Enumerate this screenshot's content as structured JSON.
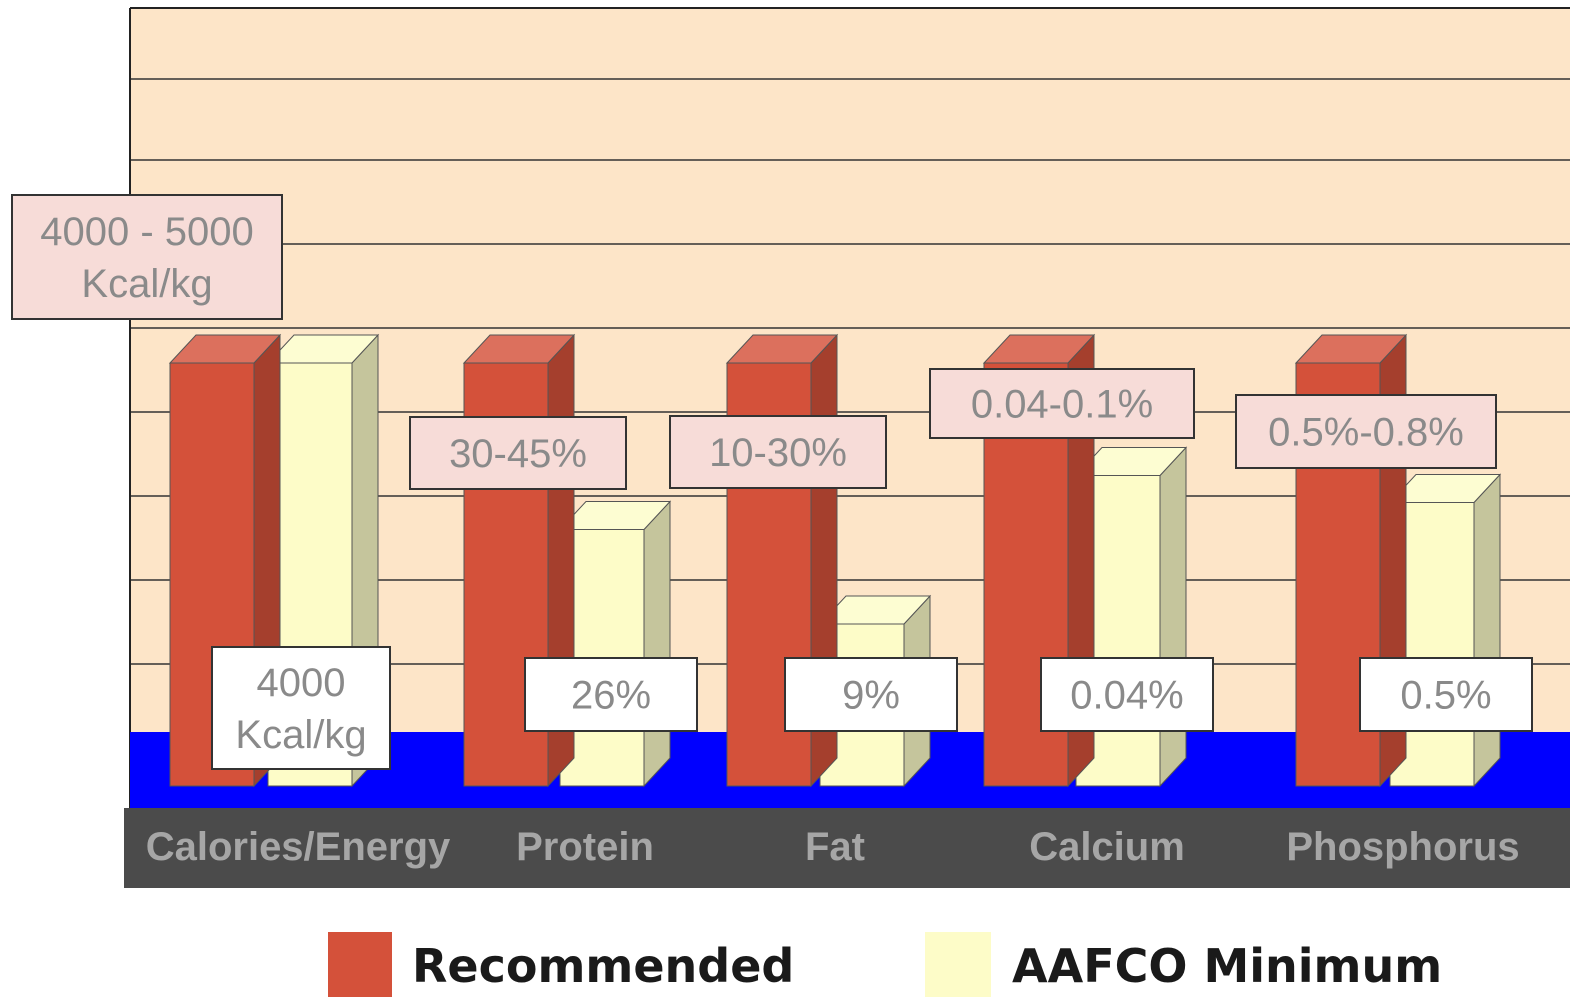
{
  "chart_data": {
    "type": "bar",
    "categories": [
      "Calories/Energy",
      "Protein",
      "Fat",
      "Calcium",
      "Phosphorus"
    ],
    "series": [
      {
        "name": "Recommended",
        "labels": [
          [
            "4000 - 5000",
            "Kcal/kg"
          ],
          [
            "30-45%"
          ],
          [
            "10-30%"
          ],
          [
            "0.04-0.1%"
          ],
          [
            "0.5%-0.8%"
          ]
        ]
      },
      {
        "name": "AAFCO Minimum",
        "labels": [
          [
            "4000",
            "Kcal/kg"
          ],
          [
            "26%"
          ],
          [
            "9%"
          ],
          [
            "0.04%"
          ],
          [
            "0.5%"
          ]
        ]
      }
    ],
    "relative_heights": {
      "Recommended": [
        0.94,
        0.94,
        0.94,
        0.94,
        0.94
      ],
      "AAFCO Minimum": [
        0.94,
        0.57,
        0.36,
        0.69,
        0.63
      ]
    },
    "legend_position": "bottom",
    "grid": true,
    "colors": {
      "recommended": "#d4513a",
      "aafco": "#fdfcc8",
      "plot_background": "#fde5c8",
      "floor": "#0000ff",
      "axis_band": "#4b4b4b",
      "label_box_recommended": "#f7dcd8",
      "label_box_aafco": "#ffffff"
    }
  }
}
